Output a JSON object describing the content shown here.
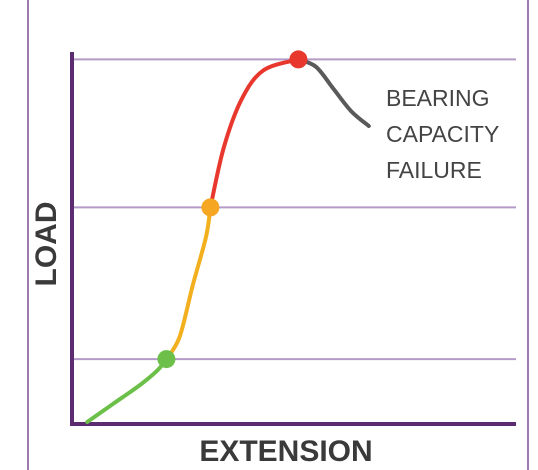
{
  "chart_data": {
    "type": "line",
    "title": "",
    "xlabel": "EXTENSION",
    "ylabel": "LOAD",
    "xlim": [
      0,
      100
    ],
    "ylim": [
      0,
      100
    ],
    "grid": "horizontal",
    "reference_lines_y": [
      17,
      58,
      98
    ],
    "segments": [
      {
        "color": "#6cc04a",
        "points": [
          [
            3,
            0
          ],
          [
            9,
            5
          ],
          [
            15,
            10
          ],
          [
            19,
            14
          ],
          [
            21,
            17
          ]
        ]
      },
      {
        "color": "#f2b01e",
        "points": [
          [
            21,
            17
          ],
          [
            24,
            23
          ],
          [
            27,
            37
          ],
          [
            30,
            50
          ],
          [
            31,
            58
          ]
        ]
      },
      {
        "color": "#e8382e",
        "points": [
          [
            31,
            58
          ],
          [
            34,
            74
          ],
          [
            38,
            87
          ],
          [
            43,
            95
          ],
          [
            51,
            98
          ]
        ]
      },
      {
        "color": "#5a5a5a",
        "points": [
          [
            51,
            98
          ],
          [
            55,
            96
          ],
          [
            59,
            90
          ],
          [
            63,
            84
          ],
          [
            67,
            80
          ]
        ]
      }
    ],
    "markers": [
      {
        "x": 21,
        "y": 17,
        "color": "#6cc04a"
      },
      {
        "x": 31,
        "y": 58,
        "color": "#f5a623"
      },
      {
        "x": 51,
        "y": 98,
        "color": "#e8382e"
      }
    ],
    "annotation": {
      "lines": [
        "BEARING",
        "CAPACITY",
        "FAILURE"
      ],
      "anchor": [
        67,
        80
      ]
    },
    "colors": {
      "axis": "#5b2c6f",
      "grid": "#b49ac8",
      "frame": "#7d4f96"
    }
  }
}
